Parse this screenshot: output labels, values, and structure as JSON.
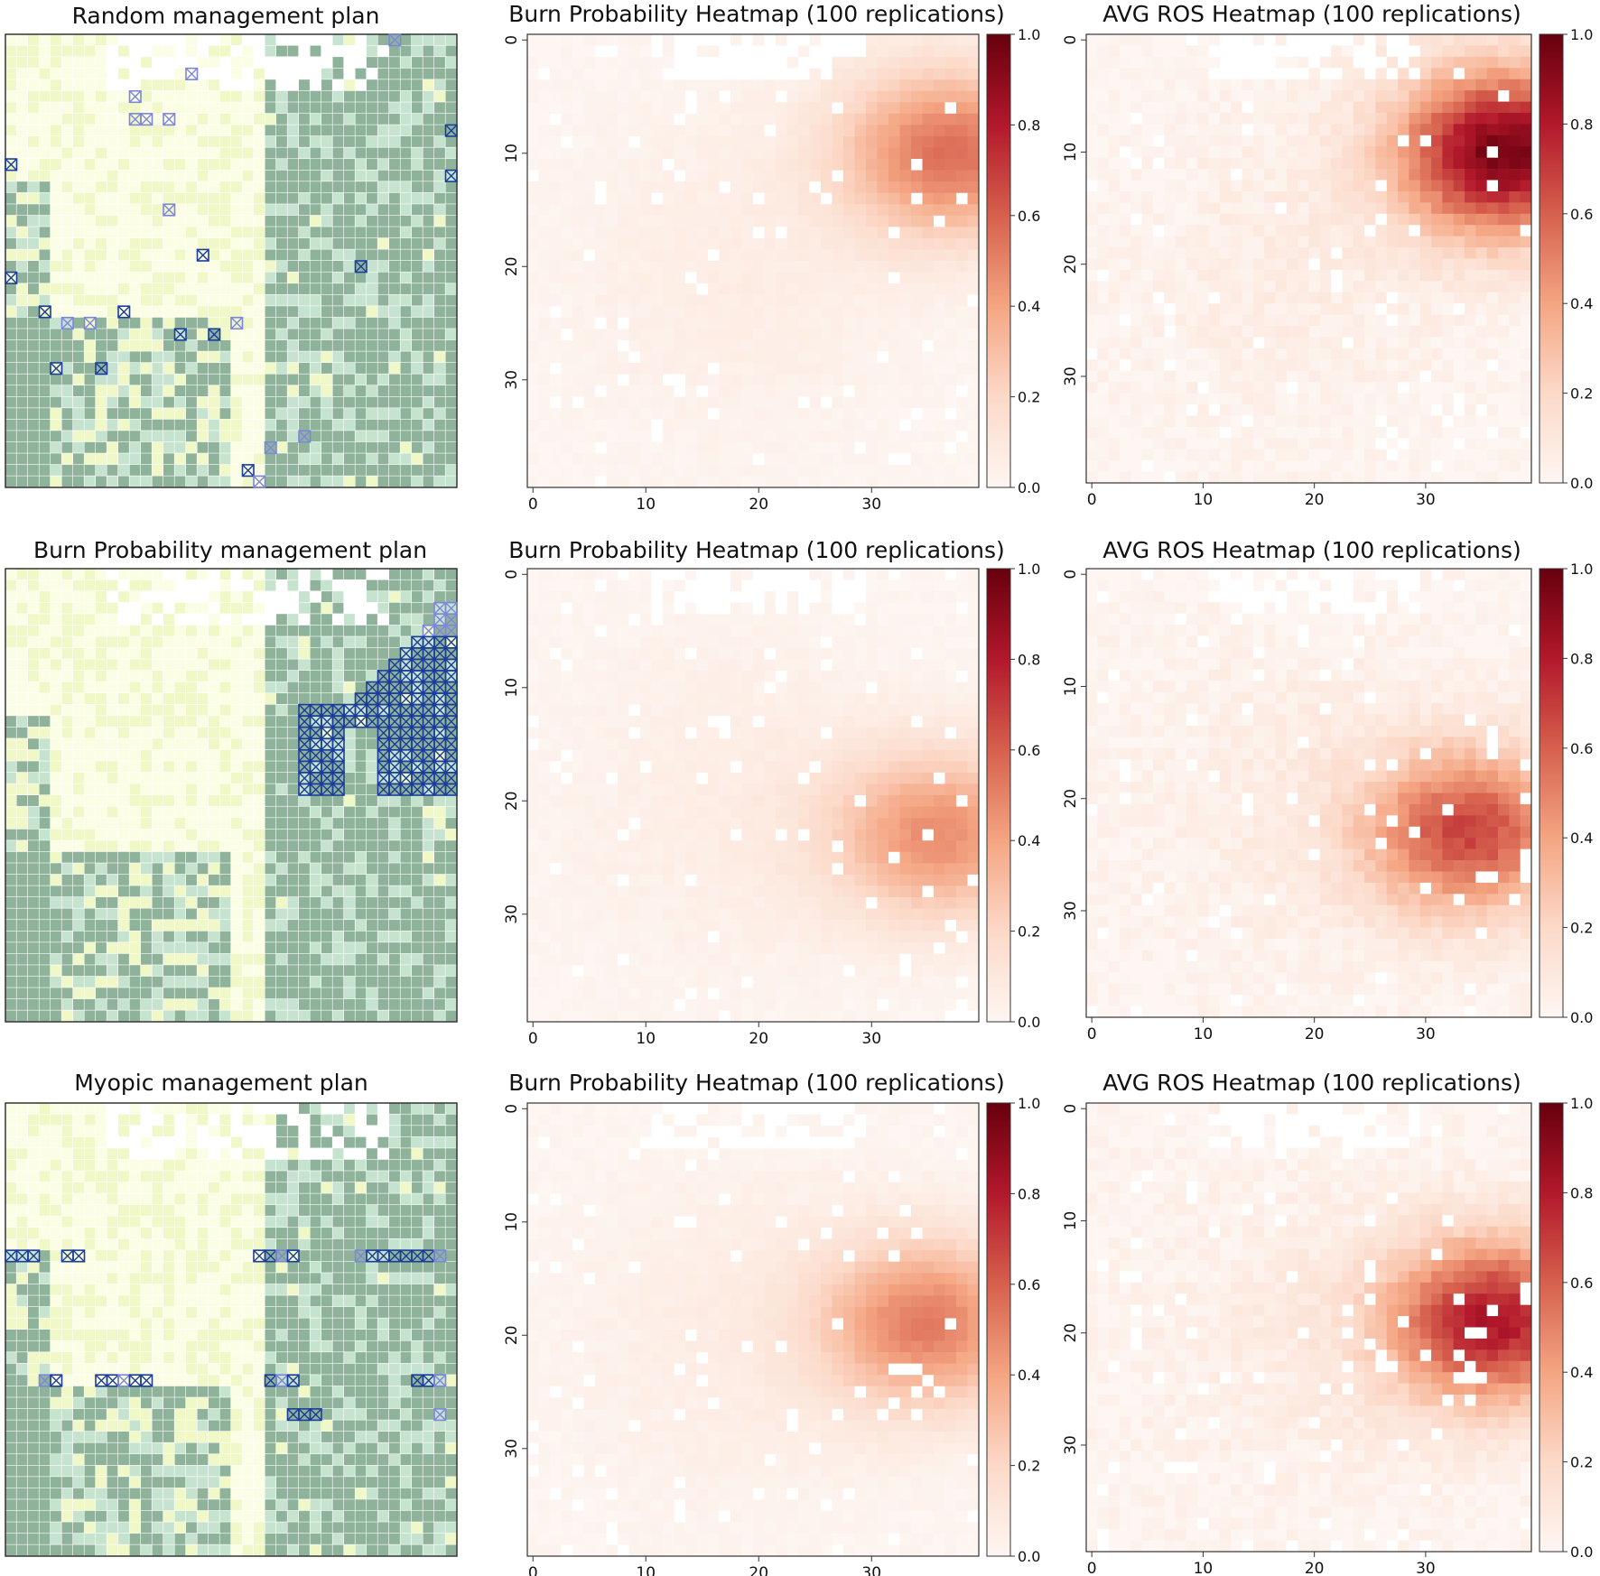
{
  "figure": {
    "rows": [
      {
        "plan_title": "Random management plan",
        "bp_title": "Burn Probability Heatmap (100 replications)",
        "ros_title": "AVG ROS Heatmap (100 replications)"
      },
      {
        "plan_title": "Burn Probability management plan",
        "bp_title": "Burn Probability Heatmap (100 replications)",
        "ros_title": "AVG ROS Heatmap (100 replications)"
      },
      {
        "plan_title": "Myopic management plan",
        "bp_title": "Burn Probability Heatmap (100 replications)",
        "ros_title": "AVG ROS Heatmap (100 replications)"
      }
    ]
  },
  "colors": {
    "forest_dark": "#8fb29a",
    "forest_light": "#c5e3cf",
    "grass": "#f0f8c8",
    "open": "#fbfde4",
    "non_fuel": "#ffffff",
    "firebreak_dark": "#1a3c9a",
    "firebreak_light": "#7d86dc",
    "heat_low": "#fbf3f0",
    "heat_high": "#67000d"
  },
  "chart_data": [
    {
      "type": "heatmap",
      "panel": "plan",
      "title": "Random management plan",
      "grid_size": [
        40,
        40
      ],
      "legend": "none",
      "description_of_values": "land-cover grid with scattered firebreak cells"
    },
    {
      "type": "heatmap",
      "panel": "burn_probability",
      "title": "Burn Probability Heatmap (100 replications)",
      "grid_size": [
        40,
        40
      ],
      "x_ticks": [
        "0",
        "10",
        "20",
        "30"
      ],
      "y_ticks": [
        "0",
        "10",
        "20",
        "30"
      ],
      "colorbar_ticks": [
        "0.0",
        "0.2",
        "0.4",
        "0.6",
        "0.8",
        "1.0"
      ],
      "vmin": 0.0,
      "vmax": 1.0,
      "hotspot": {
        "center_col": 37,
        "center_row": 10,
        "peak": 0.55
      }
    },
    {
      "type": "heatmap",
      "panel": "avg_ros",
      "title": "AVG ROS Heatmap (100 replications)",
      "grid_size": [
        40,
        40
      ],
      "x_ticks": [
        "0",
        "10",
        "20",
        "30"
      ],
      "y_ticks": [
        "0",
        "10",
        "20",
        "30"
      ],
      "colorbar_ticks": [
        "0.0",
        "0.2",
        "0.4",
        "0.6",
        "0.8",
        "1.0"
      ],
      "vmin": 0.0,
      "vmax": 1.0,
      "hotspot": {
        "center_col": 37,
        "center_row": 10,
        "peak": 0.95
      }
    },
    {
      "type": "heatmap",
      "panel": "plan",
      "title": "Burn Probability management plan",
      "grid_size": [
        40,
        40
      ],
      "legend": "none",
      "description_of_values": "land-cover grid with dense firebreak block in upper right"
    },
    {
      "type": "heatmap",
      "panel": "burn_probability",
      "title": "Burn Probability Heatmap (100 replications)",
      "grid_size": [
        40,
        40
      ],
      "x_ticks": [
        "0",
        "10",
        "20",
        "30"
      ],
      "y_ticks": [
        "0",
        "10",
        "20",
        "30"
      ],
      "colorbar_ticks": [
        "0.0",
        "0.2",
        "0.4",
        "0.6",
        "0.8",
        "1.0"
      ],
      "vmin": 0.0,
      "vmax": 1.0,
      "hotspot": {
        "center_col": 36,
        "center_row": 23,
        "peak": 0.45
      }
    },
    {
      "type": "heatmap",
      "panel": "avg_ros",
      "title": "AVG ROS Heatmap (100 replications)",
      "grid_size": [
        40,
        40
      ],
      "x_ticks": [
        "0",
        "10",
        "20",
        "30"
      ],
      "y_ticks": [
        "0",
        "10",
        "20",
        "30"
      ],
      "colorbar_ticks": [
        "0.0",
        "0.2",
        "0.4",
        "0.6",
        "0.8",
        "1.0"
      ],
      "vmin": 0.0,
      "vmax": 1.0,
      "hotspot": {
        "center_col": 34,
        "center_row": 23,
        "peak": 0.65
      }
    },
    {
      "type": "heatmap",
      "panel": "plan",
      "title": "Myopic management plan",
      "grid_size": [
        40,
        40
      ],
      "legend": "none",
      "description_of_values": "land-cover grid with firebreak bands at rows 13 and 24"
    },
    {
      "type": "heatmap",
      "panel": "burn_probability",
      "title": "Burn Probability Heatmap (100 replications)",
      "grid_size": [
        40,
        40
      ],
      "x_ticks": [
        "0",
        "10",
        "20",
        "30"
      ],
      "y_ticks": [
        "0",
        "10",
        "20",
        "30"
      ],
      "colorbar_ticks": [
        "0.0",
        "0.2",
        "0.4",
        "0.6",
        "0.8",
        "1.0"
      ],
      "vmin": 0.0,
      "vmax": 1.0,
      "hotspot": {
        "center_col": 35,
        "center_row": 19,
        "peak": 0.5
      }
    },
    {
      "type": "heatmap",
      "panel": "avg_ros",
      "title": "AVG ROS Heatmap (100 replications)",
      "grid_size": [
        40,
        40
      ],
      "x_ticks": [
        "0",
        "10",
        "20",
        "30"
      ],
      "y_ticks": [
        "0",
        "10",
        "20",
        "30"
      ],
      "colorbar_ticks": [
        "0.0",
        "0.2",
        "0.4",
        "0.6",
        "0.8",
        "1.0"
      ],
      "vmin": 0.0,
      "vmax": 1.0,
      "hotspot": {
        "center_col": 36,
        "center_row": 19,
        "peak": 0.8
      }
    }
  ]
}
